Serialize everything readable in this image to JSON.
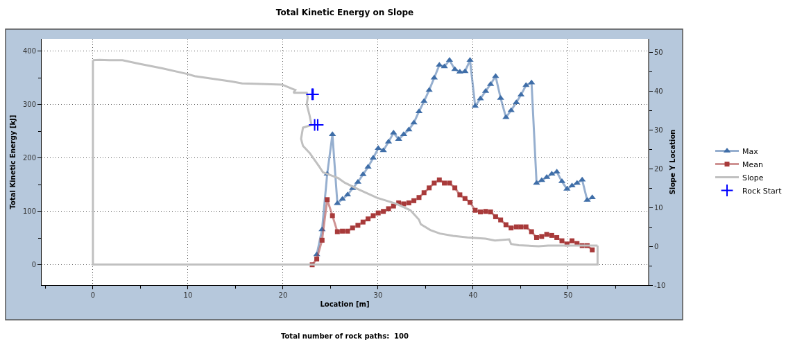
{
  "chart_data": {
    "type": "line",
    "title": "Total Kinetic Energy on Slope",
    "xlabel": "Location [m]",
    "ylabel": "Total Kinetic Energy [kJ]",
    "y2label": "Slope Y Location",
    "annotations": [
      "Total number of rock paths:  100"
    ],
    "x": [
      23.07,
      23.55,
      24.11,
      24.65,
      25.2,
      25.72,
      26.25,
      26.79,
      27.32,
      27.88,
      28.42,
      28.95,
      29.49,
      30.02,
      30.56,
      31.1,
      31.63,
      32.17,
      32.7,
      33.24,
      33.77,
      34.31,
      34.84,
      35.38,
      35.91,
      36.45,
      36.98,
      37.52,
      38.08,
      38.61,
      39.15,
      39.68,
      40.22,
      40.77,
      41.32,
      41.84,
      42.37,
      42.9,
      43.46,
      44.0,
      44.55,
      45.04,
      45.57,
      46.15,
      46.68,
      47.22,
      47.75,
      48.28,
      48.81,
      49.35,
      49.88,
      50.41,
      50.94,
      51.48,
      52.01,
      52.54
    ],
    "series": [
      {
        "name": "Max",
        "marker": "triangle",
        "color": "#3f6ea8",
        "values": [
          null,
          19,
          66,
          170,
          244,
          115,
          123,
          131,
          143,
          155,
          169,
          183,
          200,
          218,
          214,
          230,
          247,
          235,
          244,
          253,
          266,
          287,
          306,
          327,
          350,
          374,
          371,
          383,
          366,
          361,
          362,
          383,
          297,
          311,
          325,
          338,
          353,
          312,
          276,
          289,
          304,
          318,
          336,
          341,
          153,
          158,
          164,
          170,
          174,
          156,
          142,
          148,
          153,
          159,
          121,
          126
        ]
      },
      {
        "name": "Mean",
        "marker": "square",
        "color": "#a83a3a",
        "values": [
          0,
          11,
          46,
          122,
          92,
          62,
          63,
          63,
          69,
          74,
          80,
          86,
          92,
          97,
          100,
          105,
          110,
          116,
          114,
          116,
          120,
          126,
          135,
          144,
          153,
          159,
          153,
          153,
          144,
          131,
          124,
          117,
          102,
          99,
          100,
          99,
          90,
          84,
          75,
          69,
          71,
          71,
          71,
          62,
          51,
          53,
          57,
          55,
          51,
          45,
          39,
          45,
          40,
          36,
          36,
          28
        ]
      },
      {
        "name": "Slope",
        "color": "#c0c0c0",
        "axis": "y2",
        "x": [
          0,
          0.7,
          1.7,
          3.1,
          4.8,
          7.3,
          10.0,
          10.7,
          14.6,
          15.7,
          17.0,
          19.9,
          20.9,
          21.3,
          21.1,
          22.5,
          22.6,
          22.5,
          22.8,
          23.0,
          22.1,
          21.9,
          22.1,
          22.8,
          23.8,
          24.2,
          25.8,
          26.5,
          28.0,
          29.9,
          31.9,
          33.4,
          34.3,
          34.5,
          35.5,
          36.5,
          37.9,
          39.4,
          41.3,
          42.3,
          43.8,
          44.0,
          44.8,
          46.9,
          47.9,
          53.1
        ],
        "values": [
          48.0,
          48.1,
          48.0,
          48.0,
          47.1,
          45.9,
          44.4,
          43.9,
          42.5,
          42.0,
          41.9,
          41.7,
          40.7,
          40.3,
          39.6,
          39.6,
          38.4,
          36.6,
          33.7,
          31.3,
          30.6,
          27.7,
          25.9,
          24.1,
          20.6,
          19.1,
          17.6,
          16.4,
          14.6,
          12.5,
          11.0,
          9.3,
          6.9,
          5.7,
          4.2,
          3.3,
          2.7,
          2.3,
          2.0,
          1.5,
          1.8,
          0.6,
          0.3,
          0.0,
          0.2,
          0.2
        ]
      },
      {
        "color": "#c0c0c0",
        "axis": "y2",
        "x": [
          0,
          0,
          53.1,
          53.1
        ],
        "values": [
          48.0,
          -4.7,
          -4.7,
          0.2
        ]
      },
      {
        "name": "Rock Start",
        "type": "scatter",
        "marker": "cross",
        "color": "#0000ff",
        "axis": "y2",
        "x": [
          23.06,
          23.16,
          23.33,
          23.65
        ],
        "values": [
          39.2,
          39.2,
          31.3,
          31.3
        ]
      }
    ],
    "xlim": [
      -5.4,
      58.4
    ],
    "xticks": [
      {
        "value": -5,
        "label": null
      },
      0,
      {
        "value": 5,
        "label": null
      },
      10,
      {
        "value": 15,
        "label": null
      },
      20,
      {
        "value": 25,
        "label": null
      },
      30,
      {
        "value": 35,
        "label": null
      },
      40,
      {
        "value": 45,
        "label": null
      },
      50,
      {
        "value": 55,
        "label": null
      }
    ],
    "ylim": [
      -38,
      423
    ],
    "yticks": [
      0,
      {
        "value": 50,
        "label": null
      },
      100,
      {
        "value": 150,
        "label": null
      },
      200,
      {
        "value": 250,
        "label": null
      },
      300,
      {
        "value": 350,
        "label": null
      },
      400
    ],
    "y2lim": [
      -10,
      53.5
    ],
    "y2ticks": [
      -10,
      {
        "value": -5,
        "label": null
      },
      0,
      {
        "value": 5,
        "label": null
      },
      10,
      {
        "value": 15,
        "label": null
      },
      20,
      {
        "value": 25,
        "label": null
      },
      30,
      {
        "value": 35,
        "label": null
      },
      40,
      {
        "value": 45,
        "label": null
      },
      50
    ],
    "grid": true,
    "legend": "right"
  }
}
